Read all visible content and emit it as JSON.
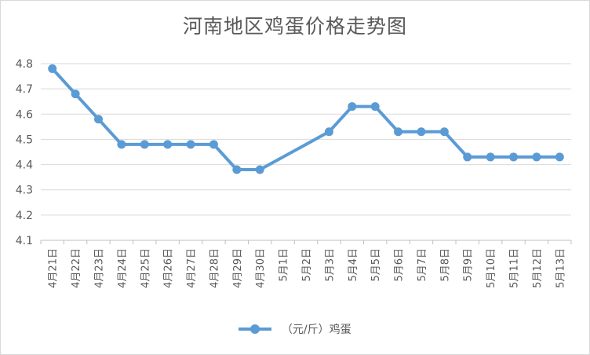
{
  "chart_data": {
    "type": "line",
    "title": "河南地区鸡蛋价格走势图",
    "xlabel": "",
    "ylabel": "",
    "ylim": [
      4.1,
      4.8
    ],
    "yticks": [
      "4.1",
      "4.2",
      "4.3",
      "4.4",
      "4.5",
      "4.6",
      "4.7",
      "4.8"
    ],
    "grid": true,
    "legend_position": "bottom",
    "categories": [
      "4月21日",
      "4月22日",
      "4月23日",
      "4月24日",
      "4月25日",
      "4月26日",
      "4月27日",
      "4月28日",
      "4月29日",
      "4月30日",
      "5月1日",
      "5月2日",
      "5月3日",
      "5月4日",
      "5月5日",
      "5月6日",
      "5月7日",
      "5月8日",
      "5月9日",
      "5月10日",
      "5月11日",
      "5月12日",
      "5月13日"
    ],
    "series": [
      {
        "name": "（元/斤）鸡蛋",
        "color": "#5b9bd5",
        "values": [
          4.78,
          4.68,
          4.58,
          4.48,
          4.48,
          4.48,
          4.48,
          4.48,
          4.38,
          4.38,
          null,
          null,
          4.53,
          4.63,
          4.63,
          4.53,
          4.53,
          4.53,
          4.43,
          4.43,
          4.43,
          4.43,
          4.43
        ]
      }
    ]
  }
}
